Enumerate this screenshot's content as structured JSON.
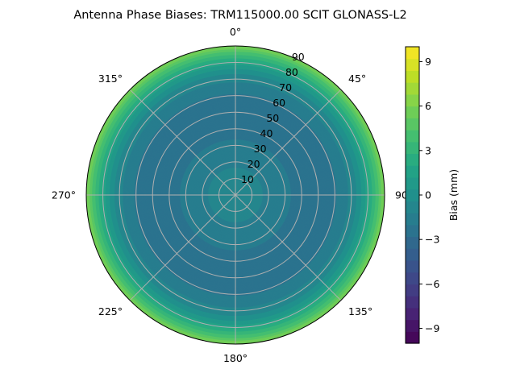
{
  "chart_data": {
    "type": "polar-contour",
    "title": "Antenna Phase Biases: TRM115000.00     SCIT GLONASS-L2",
    "azimuth_labels": [
      {
        "deg": 0,
        "text": "0°"
      },
      {
        "deg": 45,
        "text": "45°"
      },
      {
        "deg": 90,
        "text": "90°"
      },
      {
        "deg": 135,
        "text": "135°"
      },
      {
        "deg": 180,
        "text": "180°"
      },
      {
        "deg": 225,
        "text": "225°"
      },
      {
        "deg": 270,
        "text": "270°"
      },
      {
        "deg": 315,
        "text": "315°"
      }
    ],
    "radial_ticks": [
      10,
      20,
      30,
      40,
      50,
      60,
      70,
      80,
      90
    ],
    "radial_range": [
      0,
      90
    ],
    "grid": true,
    "colorbar": {
      "label": "Bias (mm)",
      "range": [
        -10,
        10
      ],
      "ticks": [
        -9,
        -6,
        -3,
        0,
        3,
        6,
        9
      ],
      "tick_labels": [
        "−9",
        "−6",
        "−3",
        "0",
        "3",
        "6",
        "9"
      ],
      "levels": 25,
      "colormap": "viridis"
    },
    "bias_profile": {
      "zenith_deg": [
        0,
        10,
        20,
        30,
        40,
        50,
        60,
        70,
        75,
        80,
        85,
        90
      ],
      "bias_mm": [
        -0.9,
        -1.0,
        -1.3,
        -1.9,
        -2.2,
        -2.3,
        -2.1,
        -1.0,
        0.0,
        1.8,
        3.8,
        6.0
      ]
    }
  }
}
